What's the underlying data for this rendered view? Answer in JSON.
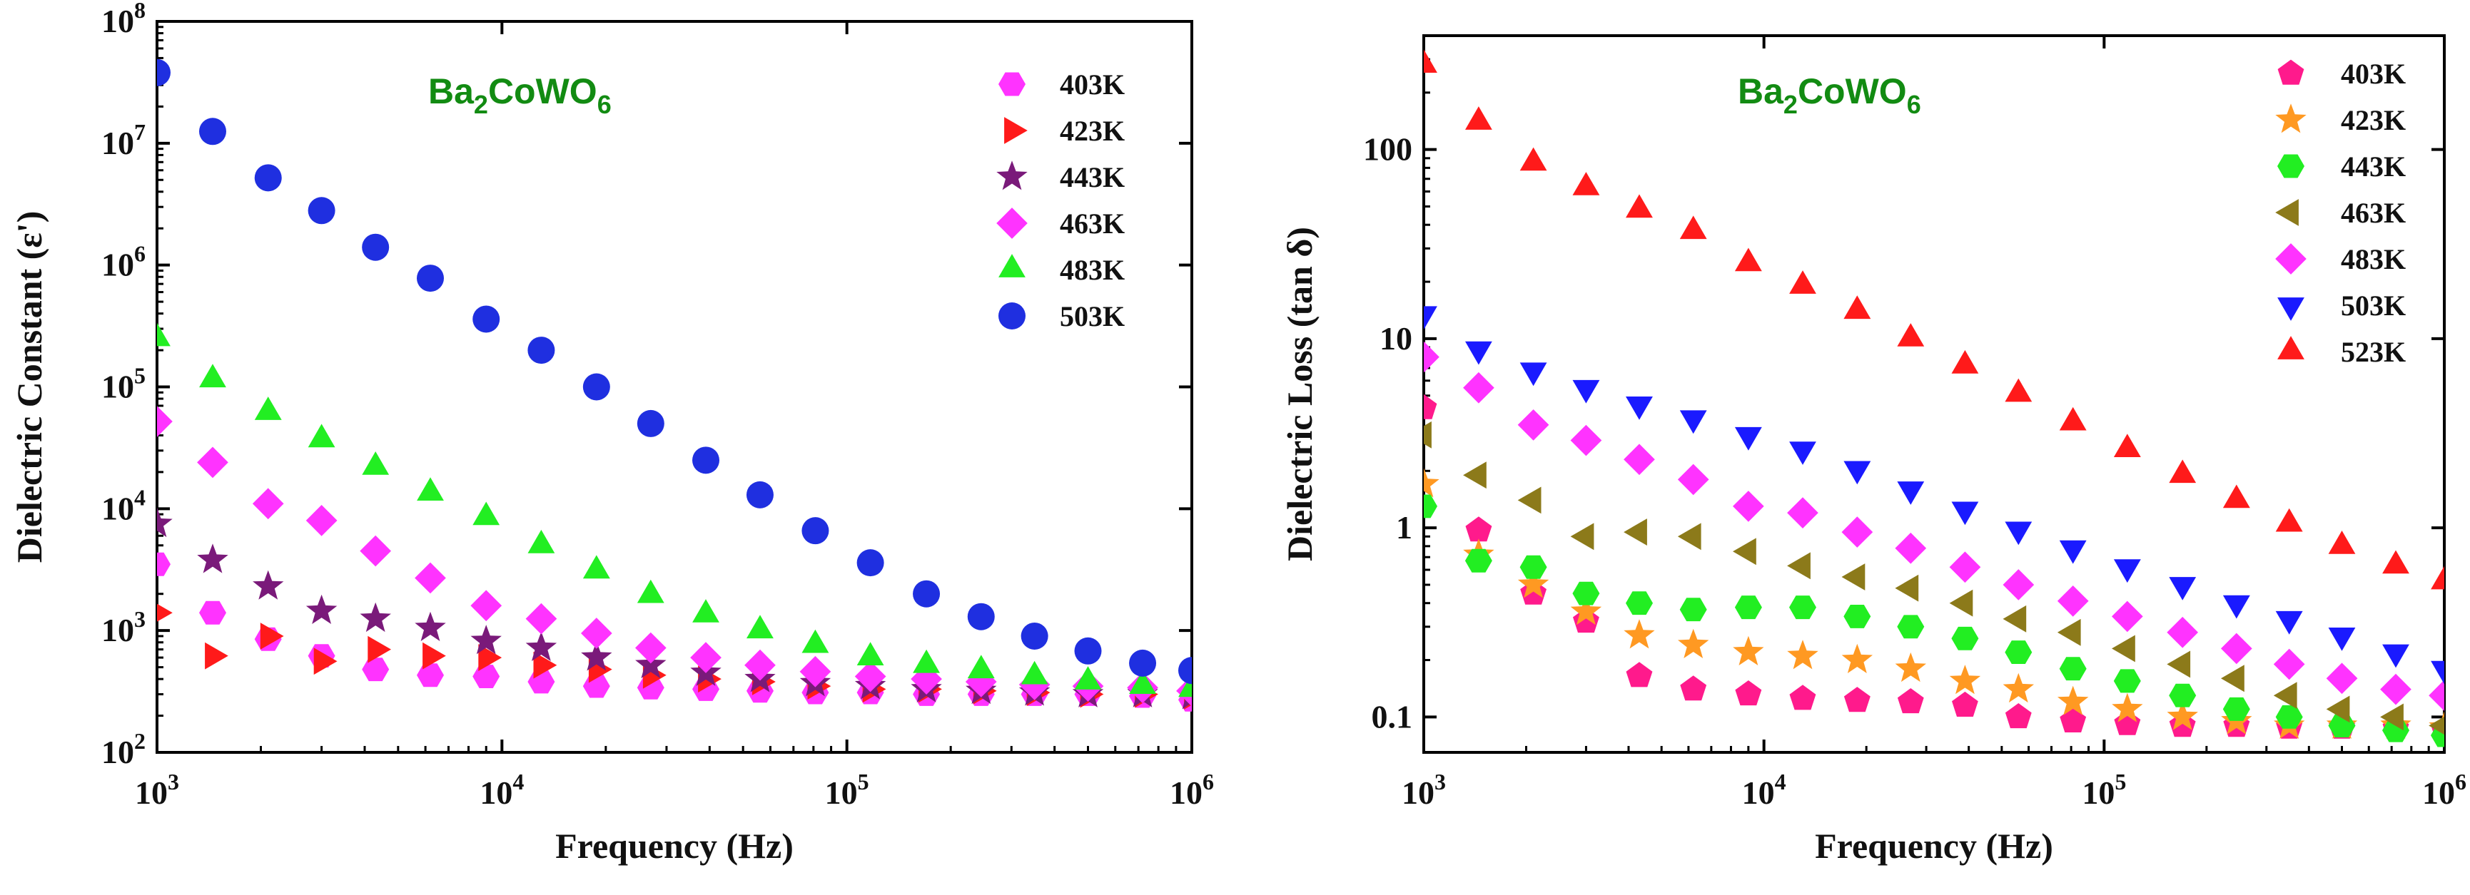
{
  "chart_data": [
    {
      "type": "scatter",
      "scale": "log-log",
      "compound": {
        "base": "Ba",
        "sub1": "2",
        "mid": "CoWO",
        "sub2": "6"
      },
      "xlabel": "Frequency (Hz)",
      "ylabel": "Dielectric Constant (ε')",
      "xlim": [
        1000,
        1000000
      ],
      "ylim": [
        100,
        100000000
      ],
      "xticks": [
        {
          "base": "10",
          "exp": "3"
        },
        {
          "base": "10",
          "exp": "4"
        },
        {
          "base": "10",
          "exp": "5"
        },
        {
          "base": "10",
          "exp": "6"
        }
      ],
      "yticks": [
        {
          "base": "10",
          "exp": "2"
        },
        {
          "base": "10",
          "exp": "3"
        },
        {
          "base": "10",
          "exp": "4"
        },
        {
          "base": "10",
          "exp": "5"
        },
        {
          "base": "10",
          "exp": "6"
        },
        {
          "base": "10",
          "exp": "7"
        },
        {
          "base": "10",
          "exp": "8"
        }
      ],
      "x": [
        1000,
        1450,
        2100,
        3000,
        4300,
        6200,
        9000,
        13000,
        18800,
        27000,
        39000,
        56000,
        81000,
        117000,
        170000,
        245000,
        350000,
        500000,
        720000,
        1000000
      ],
      "series": [
        {
          "name": "403K",
          "marker": "hexagon",
          "color": "#ff33ff",
          "values": [
            3500,
            1400,
            850,
            620,
            480,
            430,
            420,
            380,
            350,
            340,
            330,
            320,
            310,
            310,
            300,
            300,
            300,
            300,
            290,
            270
          ]
        },
        {
          "name": "423K",
          "marker": "triangle-right",
          "color": "#ff1a1a",
          "values": [
            1400,
            620,
            900,
            560,
            700,
            620,
            600,
            520,
            480,
            430,
            400,
            380,
            350,
            330,
            330,
            320,
            310,
            300,
            300,
            290
          ]
        },
        {
          "name": "443K",
          "marker": "star",
          "color": "#7a1a7a",
          "values": [
            7500,
            3800,
            2300,
            1450,
            1250,
            1050,
            820,
            720,
            600,
            520,
            450,
            400,
            370,
            350,
            330,
            320,
            310,
            300,
            300,
            290
          ]
        },
        {
          "name": "463K",
          "marker": "diamond",
          "color": "#ff33ff",
          "values": [
            52000,
            24000,
            11000,
            8000,
            4500,
            2700,
            1600,
            1250,
            950,
            720,
            600,
            520,
            460,
            420,
            400,
            380,
            360,
            350,
            340,
            320
          ]
        },
        {
          "name": "483K",
          "marker": "triangle-up",
          "color": "#22ee22",
          "values": [
            250000,
            115000,
            62000,
            37000,
            22000,
            13500,
            8500,
            5000,
            3100,
            1950,
            1350,
            1000,
            760,
            600,
            520,
            470,
            420,
            380,
            350,
            330
          ]
        },
        {
          "name": "503K",
          "marker": "circle",
          "color": "#1f2fe0",
          "values": [
            38000000,
            12500000,
            5200000,
            2800000,
            1400000,
            780000,
            360000,
            200000,
            100000,
            50000,
            25000,
            13000,
            6600,
            3600,
            2000,
            1300,
            900,
            680,
            540,
            470
          ]
        }
      ]
    },
    {
      "type": "scatter",
      "scale": "log-log",
      "compound": {
        "base": "Ba",
        "sub1": "2",
        "mid": "CoWO",
        "sub2": "6"
      },
      "xlabel": "Frequency (Hz)",
      "ylabel": "Dielectric Loss (tan δ)",
      "xlim": [
        1000,
        1000000
      ],
      "ylim": [
        0.065,
        400
      ],
      "xticks": [
        {
          "base": "10",
          "exp": "3"
        },
        {
          "base": "10",
          "exp": "4"
        },
        {
          "base": "10",
          "exp": "5"
        },
        {
          "base": "10",
          "exp": "6"
        }
      ],
      "yticks": [
        "0.1",
        "1",
        "10",
        "100"
      ],
      "x": [
        1000,
        1450,
        2100,
        3000,
        4300,
        6200,
        9000,
        13000,
        18800,
        27000,
        39000,
        56000,
        81000,
        117000,
        170000,
        245000,
        350000,
        500000,
        720000,
        1000000
      ],
      "series": [
        {
          "name": "403K",
          "marker": "pentagon",
          "color": "#ff1a8c",
          "values": [
            4.3,
            0.97,
            0.45,
            0.32,
            0.165,
            0.14,
            0.132,
            0.125,
            0.122,
            0.12,
            0.115,
            0.1,
            0.095,
            0.092,
            0.09,
            0.09,
            0.088,
            0.088,
            0.087,
            0.085
          ]
        },
        {
          "name": "423K",
          "marker": "star",
          "color": "#ff9922",
          "values": [
            1.7,
            0.72,
            0.5,
            0.36,
            0.27,
            0.24,
            0.22,
            0.21,
            0.2,
            0.18,
            0.155,
            0.14,
            0.12,
            0.11,
            0.1,
            0.095,
            0.09,
            0.09,
            0.09,
            0.088
          ]
        },
        {
          "name": "443K",
          "marker": "hexagon",
          "color": "#22ee22",
          "values": [
            1.3,
            0.67,
            0.62,
            0.45,
            0.4,
            0.37,
            0.38,
            0.38,
            0.34,
            0.3,
            0.26,
            0.22,
            0.18,
            0.155,
            0.13,
            0.11,
            0.1,
            0.09,
            0.085,
            0.08
          ]
        },
        {
          "name": "463K",
          "marker": "triangle-left",
          "color": "#8c7a1a",
          "values": [
            3.1,
            1.9,
            1.4,
            0.9,
            0.95,
            0.9,
            0.75,
            0.63,
            0.55,
            0.48,
            0.4,
            0.33,
            0.28,
            0.23,
            0.19,
            0.16,
            0.13,
            0.11,
            0.1,
            0.09
          ]
        },
        {
          "name": "483K",
          "marker": "diamond",
          "color": "#ff33ff",
          "values": [
            8.0,
            5.5,
            3.5,
            2.9,
            2.3,
            1.8,
            1.3,
            1.2,
            0.95,
            0.78,
            0.62,
            0.5,
            0.41,
            0.34,
            0.28,
            0.23,
            0.19,
            0.16,
            0.14,
            0.13
          ]
        },
        {
          "name": "503K",
          "marker": "triangle-down",
          "color": "#1a1aff",
          "values": [
            13.5,
            8.8,
            6.8,
            5.5,
            4.5,
            3.8,
            3.1,
            2.6,
            2.05,
            1.6,
            1.25,
            0.98,
            0.78,
            0.62,
            0.5,
            0.4,
            0.33,
            0.27,
            0.22,
            0.18
          ]
        },
        {
          "name": "523K",
          "marker": "triangle-up",
          "color": "#ff1a1a",
          "values": [
            280,
            140,
            85,
            63,
            48,
            37,
            25,
            19,
            14,
            10,
            7.2,
            5.1,
            3.6,
            2.6,
            1.9,
            1.4,
            1.05,
            0.8,
            0.63,
            0.52
          ]
        }
      ]
    }
  ]
}
